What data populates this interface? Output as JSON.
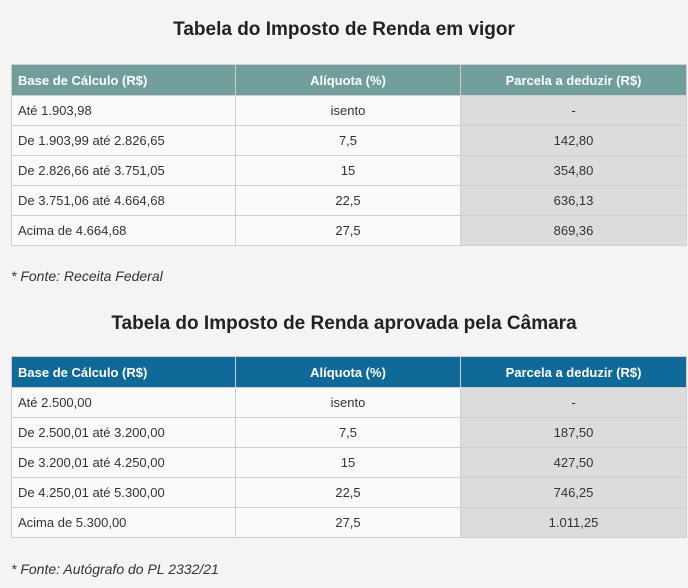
{
  "table1": {
    "title": "Tabela do Imposto de Renda em vigor",
    "headers": [
      "Base de Cálculo (R$)",
      "Alíquota (%)",
      "Parcela a deduzir (R$)"
    ],
    "rows": [
      [
        "Até 1.903,98",
        "isento",
        "-"
      ],
      [
        "De 1.903,99 até 2.826,65",
        "7,5",
        "142,80"
      ],
      [
        "De 2.826,66 até 3.751,05",
        "15",
        "354,80"
      ],
      [
        "De 3.751,06 até 4.664,68",
        "22,5",
        "636,13"
      ],
      [
        "Acima de 4.664,68",
        "27,5",
        "869,36"
      ]
    ],
    "source": "* Fonte: Receita Federal",
    "header_color": "#6f9e9b"
  },
  "table2": {
    "title": "Tabela do Imposto de Renda aprovada pela Câmara",
    "headers": [
      "Base de Cálculo (R$)",
      "Alíquota (%)",
      "Parcela a deduzir (R$)"
    ],
    "rows": [
      [
        "Até 2.500,00",
        "isento",
        "-"
      ],
      [
        "De 2.500,01 até 3.200,00",
        "7,5",
        "187,50"
      ],
      [
        "De 3.200,01 até 4.250,00",
        "15",
        "427,50"
      ],
      [
        "De 4.250,01 até 5.300,00",
        "22,5",
        "746,25"
      ],
      [
        "Acima de 5.300,00",
        "27,5",
        "1.011,25"
      ]
    ],
    "source": "* Fonte: Autógrafo do PL 2332/21",
    "header_color": "#0f6a9a"
  }
}
